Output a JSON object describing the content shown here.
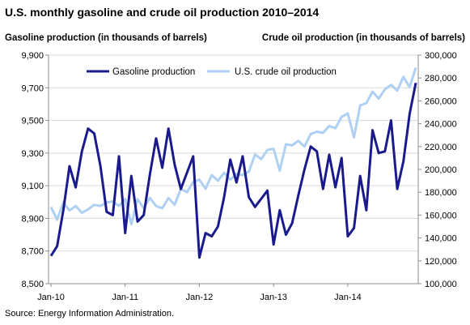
{
  "chart_data": {
    "type": "line",
    "title": "U.S. monthly gasoline and crude oil production 2010–2014",
    "left_axis_label": "Gasoline production (in thousands of barrels)",
    "right_axis_label": "Crude oil production (in thousands of barrels)",
    "left_ylim": [
      8500,
      9900
    ],
    "left_ticks": [
      "8,500",
      "8,700",
      "8,900",
      "9,100",
      "9,300",
      "9,500",
      "9,700",
      "9,900"
    ],
    "right_ylim": [
      100000,
      300000
    ],
    "right_ticks": [
      "100,000",
      "120,000",
      "140,000",
      "160,000",
      "180,000",
      "200,000",
      "220,000",
      "240,000",
      "260,000",
      "280,000",
      "300,000"
    ],
    "x_tick_labels": [
      "Jan-10",
      "Jan-11",
      "Jan-12",
      "Jan-13",
      "Jan-14"
    ],
    "months": 60,
    "source": "Source: Energy Information Administration.",
    "series": [
      {
        "name": "Gasoline production",
        "axis": "left",
        "color": "#1a1a8c",
        "values": [
          8670,
          8730,
          8950,
          9220,
          9090,
          9310,
          9450,
          9420,
          9220,
          8940,
          8920,
          9280,
          8810,
          9160,
          8880,
          8920,
          9170,
          9390,
          9210,
          9450,
          9230,
          9080,
          9180,
          9280,
          8660,
          8810,
          8790,
          8850,
          9030,
          9260,
          9120,
          9280,
          9030,
          8970,
          9020,
          9070,
          8740,
          8950,
          8800,
          8870,
          9040,
          9200,
          9340,
          9310,
          9080,
          9290,
          9090,
          9270,
          8790,
          8840,
          9160,
          8950,
          9440,
          9300,
          9310,
          9500,
          9080,
          9250,
          9540,
          9730
        ]
      },
      {
        "name": "U.S. crude oil production",
        "axis": "right",
        "color": "#aed0f2",
        "values": [
          167000,
          156000,
          171000,
          164000,
          168000,
          162000,
          165000,
          169000,
          168000,
          171000,
          172000,
          168000,
          174000,
          152000,
          174000,
          166000,
          175000,
          168000,
          166000,
          175000,
          169000,
          183000,
          180000,
          189000,
          191000,
          183000,
          195000,
          190000,
          197000,
          191000,
          196000,
          195000,
          198000,
          213000,
          209000,
          217000,
          218000,
          199000,
          222000,
          221000,
          225000,
          220000,
          231000,
          233000,
          232000,
          238000,
          236000,
          246000,
          249000,
          228000,
          256000,
          258000,
          268000,
          262000,
          270000,
          274000,
          269000,
          281000,
          272000,
          289000
        ]
      }
    ],
    "legend_position": "top"
  }
}
